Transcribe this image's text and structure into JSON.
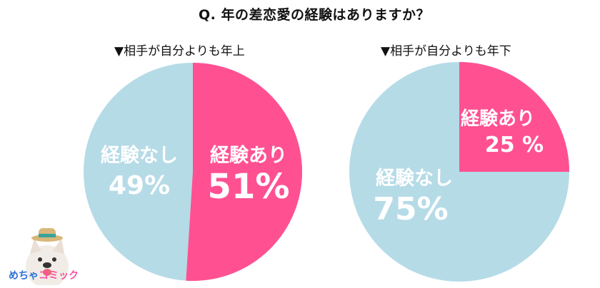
{
  "title": "Q. 年の差恋愛の経験はありますか？",
  "colors": {
    "yes": "#FF5192",
    "no": "#B5DBE7"
  },
  "charts": [
    {
      "subtitle": "▼相手が自分よりも年上",
      "yes": {
        "label": "経験あり",
        "value": "51%"
      },
      "no": {
        "label": "経験なし",
        "value": "49%"
      }
    },
    {
      "subtitle": "▼相手が自分よりも年下",
      "yes": {
        "label": "経験あり",
        "value": "25 %"
      },
      "no": {
        "label": "経験なし",
        "value": "75%"
      }
    }
  ],
  "logo": {
    "prefix": "めちゃ",
    "brand": "コミック"
  },
  "chart_data": [
    {
      "type": "pie",
      "title": "▼相手が自分よりも年上",
      "categories": [
        "経験あり",
        "経験なし"
      ],
      "values": [
        51,
        49
      ],
      "colors": [
        "#FF5192",
        "#B5DBE7"
      ]
    },
    {
      "type": "pie",
      "title": "▼相手が自分よりも年下",
      "categories": [
        "経験あり",
        "経験なし"
      ],
      "values": [
        25,
        75
      ],
      "colors": [
        "#FF5192",
        "#B5DBE7"
      ]
    }
  ]
}
